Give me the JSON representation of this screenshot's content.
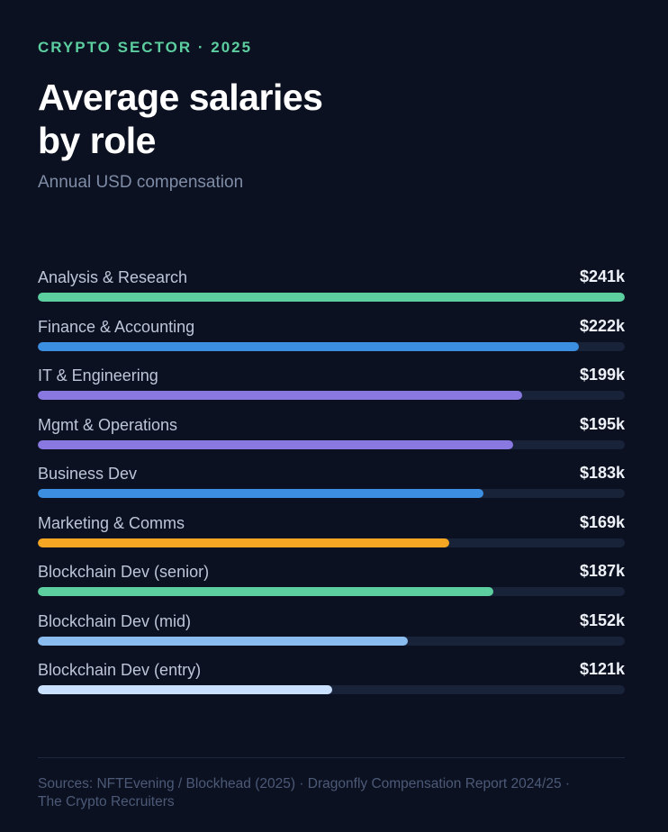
{
  "header": {
    "eyebrow": "CRYPTO SECTOR · 2025",
    "title_line1": "Average salaries",
    "title_line2": "by role",
    "subtitle": "Annual USD compensation"
  },
  "chart_data": {
    "type": "bar",
    "orientation": "horizontal",
    "title": "Average salaries by role",
    "subtitle": "Annual USD compensation",
    "unit": "USD thousands",
    "xlim": [
      0,
      241
    ],
    "categories": [
      "Analysis & Research",
      "Finance & Accounting",
      "IT & Engineering",
      "Mgmt & Operations",
      "Business Dev",
      "Marketing & Comms",
      "Blockchain Dev (senior)",
      "Blockchain Dev (mid)",
      "Blockchain Dev (entry)"
    ],
    "values": [
      241,
      222,
      199,
      195,
      183,
      169,
      187,
      152,
      121
    ],
    "value_labels": [
      "$241k",
      "$222k",
      "$199k",
      "$195k",
      "$183k",
      "$169k",
      "$187k",
      "$152k",
      "$121k"
    ],
    "colors": [
      "#5ccea0",
      "#3b8ee0",
      "#8878e0",
      "#8878e0",
      "#3b8ee0",
      "#f5a623",
      "#5ccea0",
      "#8bbcf0",
      "#c9e0ff"
    ]
  },
  "colors": {
    "background": "#0b1120",
    "track": "#18233a",
    "accent": "#5ccea0"
  },
  "footer": {
    "sources_line1": "Sources: NFTEvening / Blockhead (2025) · Dragonfly Compensation Report 2024/25 ·",
    "sources_line2": "The Crypto Recruiters"
  }
}
